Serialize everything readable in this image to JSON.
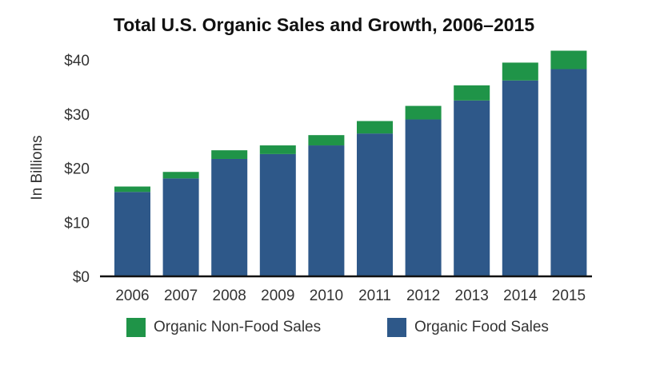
{
  "chart_data": {
    "type": "bar",
    "stacked": true,
    "title": "Total U.S. Organic Sales and Growth, 2006–2015",
    "xlabel": "",
    "ylabel": "In Billions",
    "ylim": [
      0,
      40
    ],
    "yticks": [
      "$0",
      "$10",
      "$20",
      "$30",
      "$40"
    ],
    "ytick_values": [
      0,
      10,
      20,
      30,
      40
    ],
    "grid": false,
    "legend_position": "bottom",
    "categories": [
      "2006",
      "2007",
      "2008",
      "2009",
      "2010",
      "2011",
      "2012",
      "2013",
      "2014",
      "2015"
    ],
    "series": [
      {
        "name": "Organic Food Sales",
        "color": "#2e5889",
        "values": [
          15.6,
          18.1,
          21.7,
          22.6,
          24.2,
          26.4,
          29.0,
          32.5,
          36.2,
          38.3
        ]
      },
      {
        "name": "Organic Non-Food Sales",
        "color": "#1f9448",
        "values": [
          1.0,
          1.2,
          1.6,
          1.6,
          1.9,
          2.3,
          2.5,
          2.8,
          3.3,
          3.4
        ]
      }
    ]
  }
}
